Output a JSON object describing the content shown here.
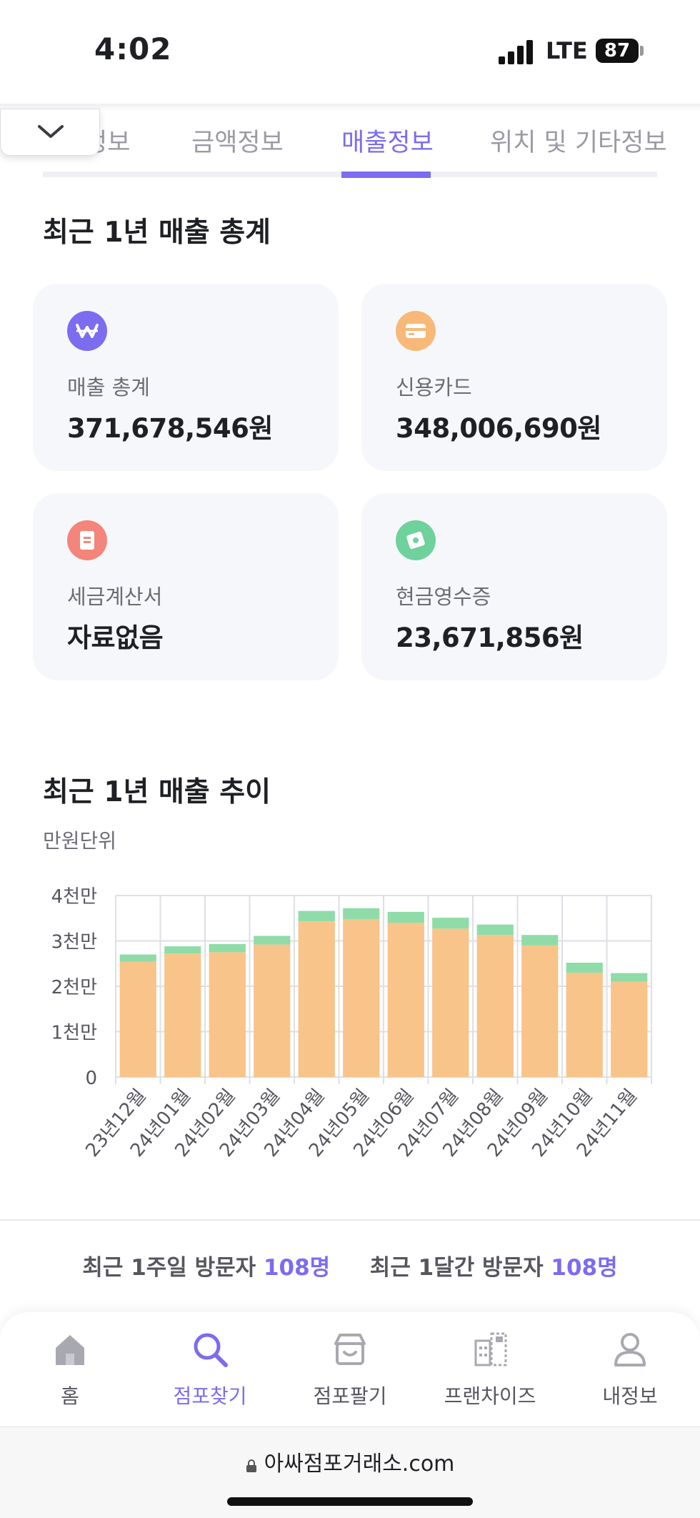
{
  "status_bar": {
    "time": "4:02",
    "network": "LTE",
    "battery": "87"
  },
  "tabs": [
    {
      "label": "정보"
    },
    {
      "label": "금액정보"
    },
    {
      "label": "매출정보",
      "active": true
    },
    {
      "label": "위치 및 기타정보"
    }
  ],
  "summary": {
    "title": "최근 1년 매출 총계",
    "cards": [
      {
        "label": "매출 총계",
        "value": "371,678,546원",
        "icon": "won-icon",
        "color": "#7b6cf0"
      },
      {
        "label": "신용카드",
        "value": "348,006,690원",
        "icon": "credit-card-icon",
        "color": "#f8b878"
      },
      {
        "label": "세금계산서",
        "value": "자료없음",
        "icon": "invoice-icon",
        "color": "#f4857a"
      },
      {
        "label": "현금영수증",
        "value": "23,671,856원",
        "icon": "receipt-icon",
        "color": "#6fd19c"
      }
    ]
  },
  "trend": {
    "title": "최근 1년 매출 추이",
    "unit": "만원단위"
  },
  "chart_data": {
    "type": "bar",
    "stacked": true,
    "categories": [
      "23년12월",
      "24년01월",
      "24년02월",
      "24년03월",
      "24년04월",
      "24년05월",
      "24년06월",
      "24년07월",
      "24년08월",
      "24년09월",
      "24년10월",
      "24년11월"
    ],
    "series": [
      {
        "values": [
          2540,
          2720,
          2750,
          2920,
          3430,
          3480,
          3400,
          3270,
          3130,
          2900,
          2300,
          2100
        ],
        "color": "#f8c48a"
      },
      {
        "values": [
          160,
          160,
          180,
          190,
          230,
          240,
          240,
          240,
          230,
          230,
          220,
          190
        ],
        "color": "#8fdca8"
      }
    ],
    "yticks": [
      "0",
      "1천만",
      "2천만",
      "3천만",
      "4천만"
    ],
    "ylim": [
      0,
      4000
    ],
    "grid": true
  },
  "visitors": {
    "week_label": "최근 1주일 방문자",
    "week_value": "108명",
    "month_label": "최근 1달간 방문자",
    "month_value": "108명"
  },
  "bottom_nav": [
    {
      "label": "홈",
      "icon": "home-icon"
    },
    {
      "label": "점포찾기",
      "icon": "search-icon",
      "active": true
    },
    {
      "label": "점포팔기",
      "icon": "store-icon"
    },
    {
      "label": "프랜차이즈",
      "icon": "franchise-icon"
    },
    {
      "label": "내정보",
      "icon": "profile-icon"
    }
  ],
  "browser": {
    "url": "아싸점포거래소.com"
  },
  "colors": {
    "accent": "#7b6cf0"
  }
}
